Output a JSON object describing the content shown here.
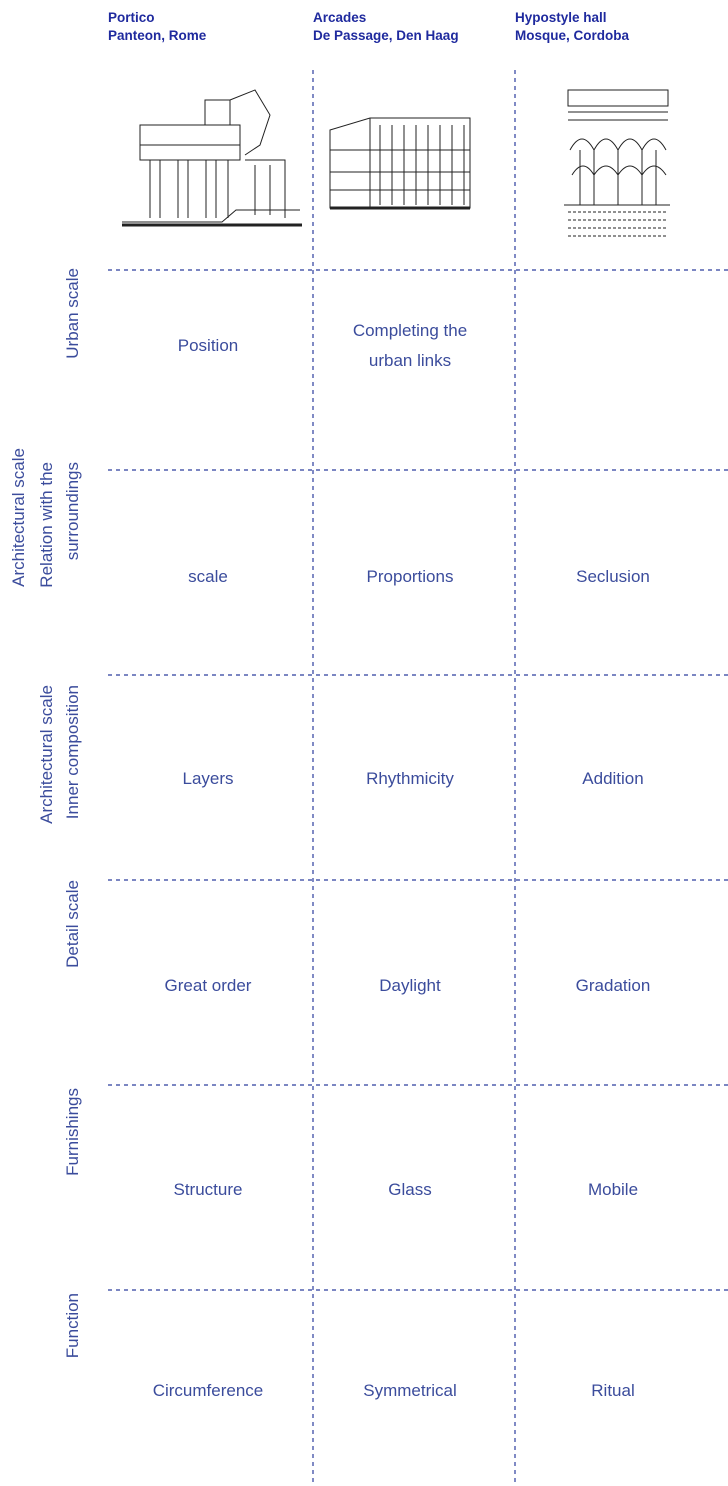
{
  "columns": [
    {
      "title": "Portico",
      "subtitle": "Panteon, Rome"
    },
    {
      "title": "Arcades",
      "subtitle": "De Passage, Den Haag"
    },
    {
      "title": "Hypostyle hall",
      "subtitle": "Mosque, Cordoba"
    }
  ],
  "rows": [
    {
      "label": [
        "Urban scale"
      ],
      "cells": [
        [
          "Position"
        ],
        [
          "Completing the",
          "urban links"
        ],
        []
      ]
    },
    {
      "label": [
        "Architectural scale",
        "Relation with the",
        "surroundings"
      ],
      "cells": [
        [
          "scale"
        ],
        [
          "Proportions"
        ],
        [
          "Seclusion"
        ]
      ]
    },
    {
      "label": [
        "Architectural scale",
        "Inner composition"
      ],
      "cells": [
        [
          "Layers"
        ],
        [
          "Rhythmicity"
        ],
        [
          "Addition"
        ]
      ]
    },
    {
      "label": [
        "Detail scale"
      ],
      "cells": [
        [
          "Great order"
        ],
        [
          "Daylight"
        ],
        [
          "Gradation"
        ]
      ]
    },
    {
      "label": [
        "Furnishings"
      ],
      "cells": [
        [
          "Structure"
        ],
        [
          "Glass"
        ],
        [
          "Mobile"
        ]
      ]
    },
    {
      "label": [
        "Function"
      ],
      "cells": [
        [
          "Circumference"
        ],
        [
          "Symmetrical"
        ],
        [
          "Ritual"
        ]
      ]
    }
  ]
}
